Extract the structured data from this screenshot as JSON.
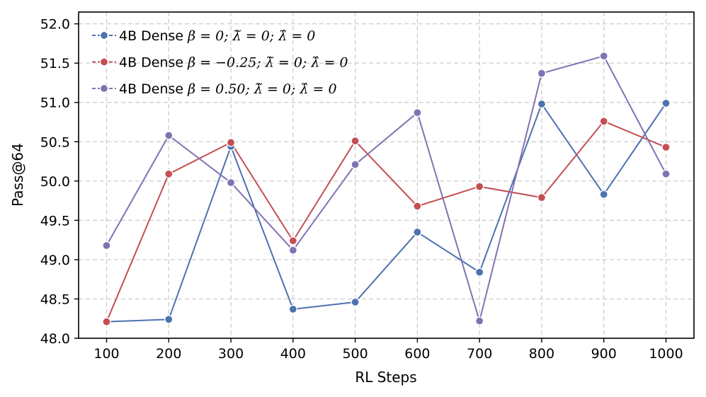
{
  "chart_data": {
    "type": "line",
    "xlabel": "RL Steps",
    "ylabel": "Pass@64",
    "categories": [
      "100",
      "200",
      "300",
      "400",
      "500",
      "600",
      "700",
      "800",
      "900",
      "1000"
    ],
    "x": [
      100,
      200,
      300,
      400,
      500,
      600,
      700,
      800,
      900,
      1000
    ],
    "ylim": [
      48.0,
      52.15
    ],
    "yticks": [
      "48.0",
      "48.5",
      "49.0",
      "49.5",
      "50.0",
      "50.5",
      "51.0",
      "51.5",
      "52.0"
    ],
    "grid": true,
    "legend_position": "top-left",
    "series": [
      {
        "name": "4B Dense",
        "label_math": "β = 0;  λ̃ = 0;  λ̂ = 0",
        "color": "#4c72b0",
        "values": [
          48.21,
          48.24,
          50.44,
          48.37,
          48.46,
          49.35,
          48.84,
          50.98,
          49.83,
          50.99
        ]
      },
      {
        "name": "4B Dense",
        "label_math": "β = −0.25;  λ̃ = 0;  λ̂ = 0",
        "color": "#c44e52",
        "values": [
          48.21,
          50.09,
          50.49,
          49.24,
          50.51,
          49.68,
          49.93,
          49.79,
          50.76,
          50.43
        ]
      },
      {
        "name": "4B Dense",
        "label_math": "β = 0.50;  λ̃ = 0;  λ̂ = 0",
        "color": "#8172b3",
        "values": [
          49.18,
          50.58,
          49.98,
          49.12,
          50.21,
          50.87,
          48.22,
          51.37,
          51.59,
          50.09
        ]
      }
    ]
  }
}
